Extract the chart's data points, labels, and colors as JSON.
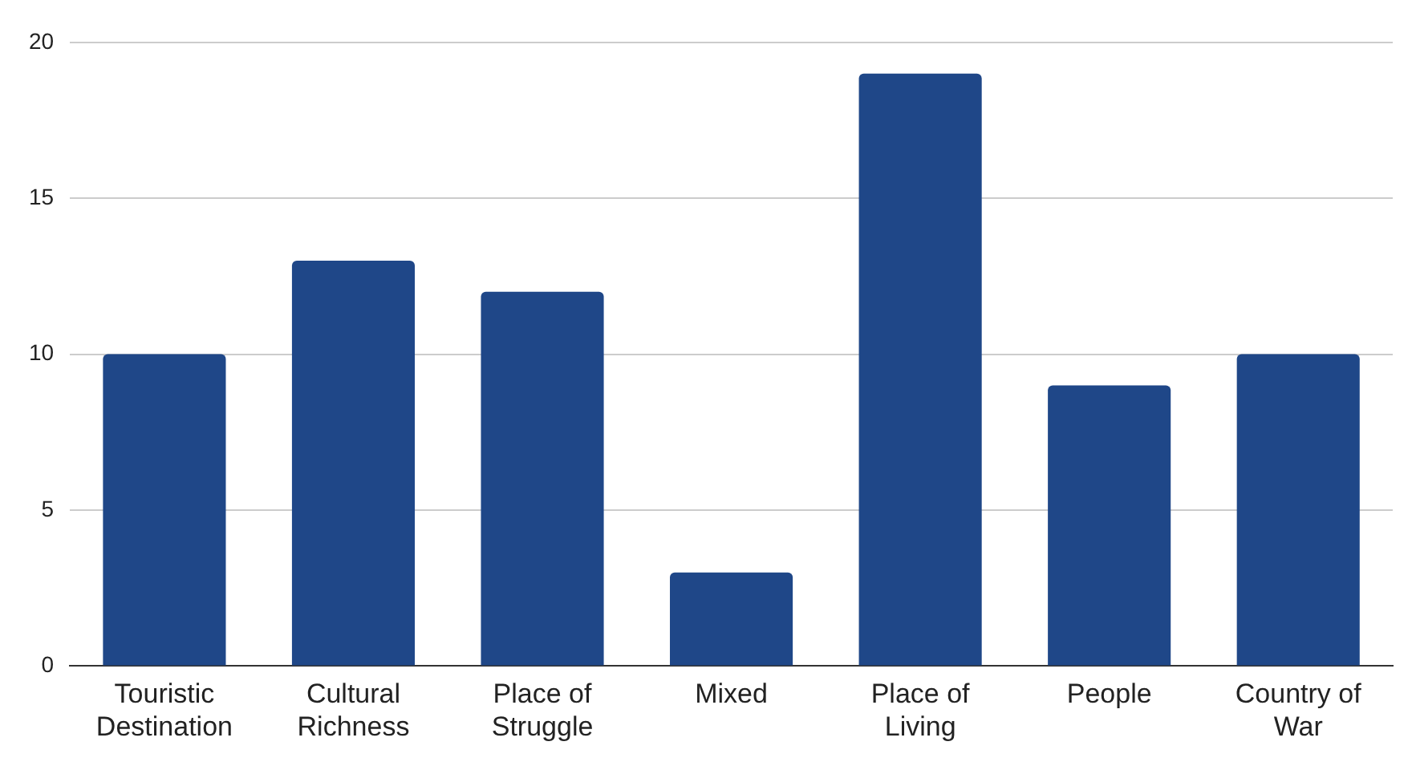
{
  "chart_data": {
    "type": "bar",
    "categories": [
      "Touristic Destination",
      "Cultural Richness",
      "Place of Struggle",
      "Mixed",
      "Place of Living",
      "People",
      "Country of War"
    ],
    "values": [
      10,
      13,
      12,
      3,
      19,
      9,
      10
    ],
    "color": "#1f4788",
    "ylim": [
      0,
      20
    ],
    "yticks": [
      0,
      5,
      10,
      15,
      20
    ],
    "grid": "y",
    "legend": false
  }
}
